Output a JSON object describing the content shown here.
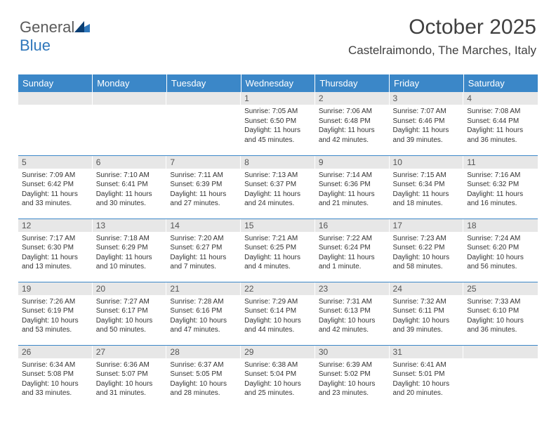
{
  "logo": {
    "text1": "General",
    "text2": "Blue"
  },
  "title": "October 2025",
  "location": "Castelraimondo, The Marches, Italy",
  "colors": {
    "header_bg": "#3b87c8",
    "header_text": "#ffffff",
    "daynum_bg": "#e7e7e7",
    "border": "#3b87c8",
    "logo_gray": "#5a5a5a",
    "logo_blue": "#2f77bb"
  },
  "weekdays": [
    "Sunday",
    "Monday",
    "Tuesday",
    "Wednesday",
    "Thursday",
    "Friday",
    "Saturday"
  ],
  "weeks": [
    [
      {
        "day": "",
        "sunrise": "",
        "sunset": "",
        "daylight": ""
      },
      {
        "day": "",
        "sunrise": "",
        "sunset": "",
        "daylight": ""
      },
      {
        "day": "",
        "sunrise": "",
        "sunset": "",
        "daylight": ""
      },
      {
        "day": "1",
        "sunrise": "Sunrise: 7:05 AM",
        "sunset": "Sunset: 6:50 PM",
        "daylight": "Daylight: 11 hours and 45 minutes."
      },
      {
        "day": "2",
        "sunrise": "Sunrise: 7:06 AM",
        "sunset": "Sunset: 6:48 PM",
        "daylight": "Daylight: 11 hours and 42 minutes."
      },
      {
        "day": "3",
        "sunrise": "Sunrise: 7:07 AM",
        "sunset": "Sunset: 6:46 PM",
        "daylight": "Daylight: 11 hours and 39 minutes."
      },
      {
        "day": "4",
        "sunrise": "Sunrise: 7:08 AM",
        "sunset": "Sunset: 6:44 PM",
        "daylight": "Daylight: 11 hours and 36 minutes."
      }
    ],
    [
      {
        "day": "5",
        "sunrise": "Sunrise: 7:09 AM",
        "sunset": "Sunset: 6:42 PM",
        "daylight": "Daylight: 11 hours and 33 minutes."
      },
      {
        "day": "6",
        "sunrise": "Sunrise: 7:10 AM",
        "sunset": "Sunset: 6:41 PM",
        "daylight": "Daylight: 11 hours and 30 minutes."
      },
      {
        "day": "7",
        "sunrise": "Sunrise: 7:11 AM",
        "sunset": "Sunset: 6:39 PM",
        "daylight": "Daylight: 11 hours and 27 minutes."
      },
      {
        "day": "8",
        "sunrise": "Sunrise: 7:13 AM",
        "sunset": "Sunset: 6:37 PM",
        "daylight": "Daylight: 11 hours and 24 minutes."
      },
      {
        "day": "9",
        "sunrise": "Sunrise: 7:14 AM",
        "sunset": "Sunset: 6:36 PM",
        "daylight": "Daylight: 11 hours and 21 minutes."
      },
      {
        "day": "10",
        "sunrise": "Sunrise: 7:15 AM",
        "sunset": "Sunset: 6:34 PM",
        "daylight": "Daylight: 11 hours and 18 minutes."
      },
      {
        "day": "11",
        "sunrise": "Sunrise: 7:16 AM",
        "sunset": "Sunset: 6:32 PM",
        "daylight": "Daylight: 11 hours and 16 minutes."
      }
    ],
    [
      {
        "day": "12",
        "sunrise": "Sunrise: 7:17 AM",
        "sunset": "Sunset: 6:30 PM",
        "daylight": "Daylight: 11 hours and 13 minutes."
      },
      {
        "day": "13",
        "sunrise": "Sunrise: 7:18 AM",
        "sunset": "Sunset: 6:29 PM",
        "daylight": "Daylight: 11 hours and 10 minutes."
      },
      {
        "day": "14",
        "sunrise": "Sunrise: 7:20 AM",
        "sunset": "Sunset: 6:27 PM",
        "daylight": "Daylight: 11 hours and 7 minutes."
      },
      {
        "day": "15",
        "sunrise": "Sunrise: 7:21 AM",
        "sunset": "Sunset: 6:25 PM",
        "daylight": "Daylight: 11 hours and 4 minutes."
      },
      {
        "day": "16",
        "sunrise": "Sunrise: 7:22 AM",
        "sunset": "Sunset: 6:24 PM",
        "daylight": "Daylight: 11 hours and 1 minute."
      },
      {
        "day": "17",
        "sunrise": "Sunrise: 7:23 AM",
        "sunset": "Sunset: 6:22 PM",
        "daylight": "Daylight: 10 hours and 58 minutes."
      },
      {
        "day": "18",
        "sunrise": "Sunrise: 7:24 AM",
        "sunset": "Sunset: 6:20 PM",
        "daylight": "Daylight: 10 hours and 56 minutes."
      }
    ],
    [
      {
        "day": "19",
        "sunrise": "Sunrise: 7:26 AM",
        "sunset": "Sunset: 6:19 PM",
        "daylight": "Daylight: 10 hours and 53 minutes."
      },
      {
        "day": "20",
        "sunrise": "Sunrise: 7:27 AM",
        "sunset": "Sunset: 6:17 PM",
        "daylight": "Daylight: 10 hours and 50 minutes."
      },
      {
        "day": "21",
        "sunrise": "Sunrise: 7:28 AM",
        "sunset": "Sunset: 6:16 PM",
        "daylight": "Daylight: 10 hours and 47 minutes."
      },
      {
        "day": "22",
        "sunrise": "Sunrise: 7:29 AM",
        "sunset": "Sunset: 6:14 PM",
        "daylight": "Daylight: 10 hours and 44 minutes."
      },
      {
        "day": "23",
        "sunrise": "Sunrise: 7:31 AM",
        "sunset": "Sunset: 6:13 PM",
        "daylight": "Daylight: 10 hours and 42 minutes."
      },
      {
        "day": "24",
        "sunrise": "Sunrise: 7:32 AM",
        "sunset": "Sunset: 6:11 PM",
        "daylight": "Daylight: 10 hours and 39 minutes."
      },
      {
        "day": "25",
        "sunrise": "Sunrise: 7:33 AM",
        "sunset": "Sunset: 6:10 PM",
        "daylight": "Daylight: 10 hours and 36 minutes."
      }
    ],
    [
      {
        "day": "26",
        "sunrise": "Sunrise: 6:34 AM",
        "sunset": "Sunset: 5:08 PM",
        "daylight": "Daylight: 10 hours and 33 minutes."
      },
      {
        "day": "27",
        "sunrise": "Sunrise: 6:36 AM",
        "sunset": "Sunset: 5:07 PM",
        "daylight": "Daylight: 10 hours and 31 minutes."
      },
      {
        "day": "28",
        "sunrise": "Sunrise: 6:37 AM",
        "sunset": "Sunset: 5:05 PM",
        "daylight": "Daylight: 10 hours and 28 minutes."
      },
      {
        "day": "29",
        "sunrise": "Sunrise: 6:38 AM",
        "sunset": "Sunset: 5:04 PM",
        "daylight": "Daylight: 10 hours and 25 minutes."
      },
      {
        "day": "30",
        "sunrise": "Sunrise: 6:39 AM",
        "sunset": "Sunset: 5:02 PM",
        "daylight": "Daylight: 10 hours and 23 minutes."
      },
      {
        "day": "31",
        "sunrise": "Sunrise: 6:41 AM",
        "sunset": "Sunset: 5:01 PM",
        "daylight": "Daylight: 10 hours and 20 minutes."
      },
      {
        "day": "",
        "sunrise": "",
        "sunset": "",
        "daylight": ""
      }
    ]
  ]
}
